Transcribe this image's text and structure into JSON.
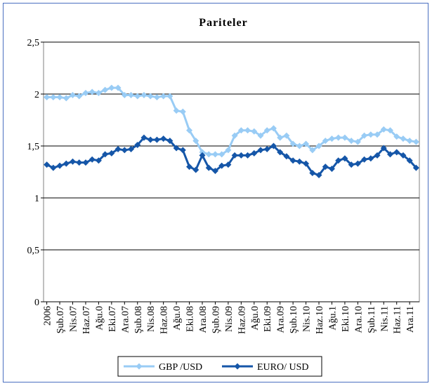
{
  "chart_data": {
    "type": "line",
    "title": "Pariteler",
    "categories": [
      "2006",
      null,
      "Şub.07",
      null,
      "Nis.07",
      null,
      "Haz.07",
      null,
      "Ağu.0",
      null,
      "Eki.07",
      null,
      "Ara.07",
      null,
      "Şub.08",
      null,
      "Nis.08",
      null,
      "Haz.08",
      null,
      "Ağu.0",
      null,
      "Eki.08",
      null,
      "Ara.08",
      null,
      "Şub.09",
      null,
      "Nis.09",
      null,
      "Haz.09",
      null,
      "Ağu.0",
      null,
      "Eki.09",
      null,
      "Ara.09",
      null,
      "Şub.10",
      null,
      "Nis.10",
      null,
      "Haz.10",
      null,
      "Ağu.1",
      null,
      "Eki.10",
      null,
      "Ara.10",
      null,
      "Şub.11",
      null,
      "Nis.11",
      null,
      "Haz.11",
      null,
      "Ara.11",
      null
    ],
    "series": [
      {
        "name": "GBP /USD",
        "color": "#99ccf5",
        "values": [
          1.97,
          1.97,
          1.97,
          1.96,
          1.99,
          1.98,
          2.01,
          2.02,
          2.01,
          2.04,
          2.06,
          2.06,
          1.99,
          1.99,
          1.98,
          1.99,
          1.98,
          1.97,
          1.98,
          1.98,
          1.84,
          1.83,
          1.65,
          1.55,
          1.44,
          1.42,
          1.42,
          1.42,
          1.46,
          1.6,
          1.65,
          1.65,
          1.64,
          1.6,
          1.65,
          1.67,
          1.58,
          1.6,
          1.52,
          1.5,
          1.52,
          1.46,
          1.5,
          1.55,
          1.57,
          1.58,
          1.58,
          1.55,
          1.54,
          1.6,
          1.61,
          1.61,
          1.66,
          1.65,
          1.59,
          1.57,
          1.55,
          1.54
        ]
      },
      {
        "name": "EURO/ USD",
        "color": "#1556a8",
        "values": [
          1.32,
          1.29,
          1.31,
          1.33,
          1.35,
          1.34,
          1.34,
          1.37,
          1.36,
          1.42,
          1.43,
          1.47,
          1.46,
          1.47,
          1.51,
          1.58,
          1.56,
          1.56,
          1.57,
          1.55,
          1.48,
          1.46,
          1.3,
          1.27,
          1.41,
          1.29,
          1.26,
          1.31,
          1.32,
          1.41,
          1.41,
          1.41,
          1.43,
          1.46,
          1.47,
          1.5,
          1.44,
          1.4,
          1.36,
          1.35,
          1.33,
          1.24,
          1.22,
          1.3,
          1.28,
          1.36,
          1.38,
          1.32,
          1.33,
          1.37,
          1.38,
          1.41,
          1.48,
          1.42,
          1.44,
          1.41,
          1.36,
          1.29
        ]
      }
    ],
    "ylim": [
      0,
      2.5
    ],
    "yticks": [
      0,
      {
        "value": 0.5,
        "label": "0,5"
      },
      1,
      {
        "value": 1.5,
        "label": "1,5"
      },
      2,
      {
        "value": 2.5,
        "label": "2,5"
      }
    ],
    "grid": true,
    "legend": "bottom"
  }
}
